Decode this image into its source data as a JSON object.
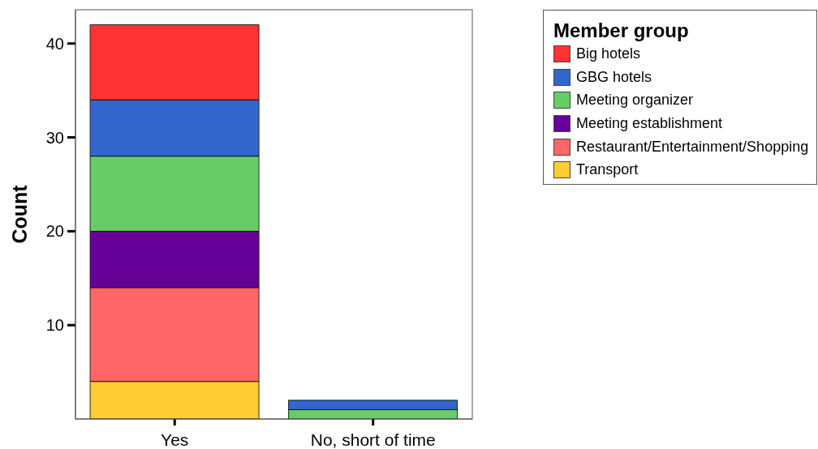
{
  "chart_data": {
    "type": "bar",
    "stacked": true,
    "ylabel": "Count",
    "legend_title": "Member group",
    "legend": "top right",
    "categories": [
      "Yes",
      "No, short of time"
    ],
    "series": [
      {
        "name": "Transport",
        "color": "#ffcc33",
        "values": [
          4,
          null
        ]
      },
      {
        "name": "Restaurant/Entertainment/Shopping",
        "color": "#ff6666",
        "values": [
          10,
          null
        ]
      },
      {
        "name": "Meeting establishment",
        "color": "#660099",
        "values": [
          6,
          null
        ]
      },
      {
        "name": "Meeting organizer",
        "color": "#66cc66",
        "values": [
          8,
          1
        ]
      },
      {
        "name": "GBG hotels",
        "color": "#3366cc",
        "values": [
          6,
          1
        ]
      },
      {
        "name": "Big hotels",
        "color": "#ff3333",
        "values": [
          8,
          null
        ]
      }
    ],
    "ylim": [
      0,
      43.6
    ],
    "yticks": [
      10,
      20,
      30,
      40
    ]
  }
}
